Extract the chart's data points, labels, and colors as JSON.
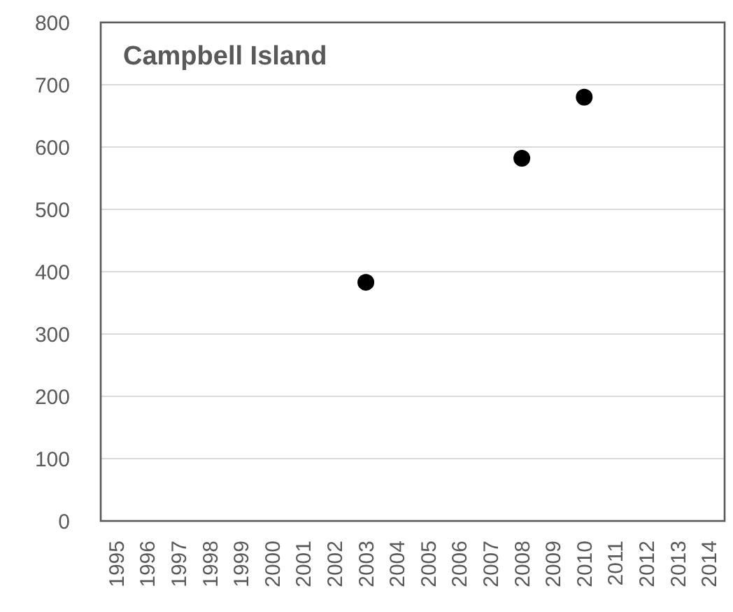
{
  "chart_data": {
    "type": "scatter",
    "title": "Campbell Island",
    "categories": [
      "1995",
      "1996",
      "1997",
      "1998",
      "1999",
      "2000",
      "2001",
      "2002",
      "2003",
      "2004",
      "2005",
      "2006",
      "2007",
      "2008",
      "2009",
      "2010",
      "2011",
      "2012",
      "2013",
      "2014"
    ],
    "series": [
      {
        "color": "#000000",
        "values": [
          null,
          null,
          null,
          null,
          null,
          null,
          null,
          null,
          383,
          null,
          null,
          null,
          null,
          582,
          null,
          680,
          null,
          null,
          null,
          null
        ]
      }
    ],
    "ylim": [
      0,
      800
    ],
    "yticks": [
      0,
      100,
      200,
      300,
      400,
      500,
      600,
      700,
      800
    ],
    "grid": "y",
    "marker": "circle"
  }
}
